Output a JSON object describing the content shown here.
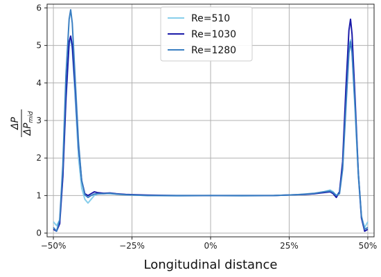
{
  "chart_data": {
    "type": "line",
    "title": "",
    "xlabel": "Longitudinal distance",
    "ylabel": "ΔP / ΔP_mid",
    "ylabel_num": "ΔP",
    "ylabel_den_main": "ΔP",
    "ylabel_den_sub": "mid",
    "xlim": [
      -0.52,
      0.52
    ],
    "ylim": [
      -0.1,
      6.1
    ],
    "xticks": [
      {
        "value": -0.5,
        "label": "−50%"
      },
      {
        "value": -0.25,
        "label": "−25%"
      },
      {
        "value": 0,
        "label": "0%"
      },
      {
        "value": 0.25,
        "label": "25%"
      },
      {
        "value": 0.5,
        "label": "50%"
      }
    ],
    "yticks": [
      {
        "value": 0,
        "label": "0"
      },
      {
        "value": 1,
        "label": "1"
      },
      {
        "value": 2,
        "label": "2"
      },
      {
        "value": 3,
        "label": "3"
      },
      {
        "value": 4,
        "label": "4"
      },
      {
        "value": 5,
        "label": "5"
      },
      {
        "value": 6,
        "label": "6"
      }
    ],
    "grid": true,
    "legend_position": "top-center",
    "series": [
      {
        "name": "Re=510",
        "color": "#87ceeb",
        "points": [
          [
            -0.5,
            0.3
          ],
          [
            -0.49,
            0.2
          ],
          [
            -0.48,
            0.35
          ],
          [
            -0.47,
            1.5
          ],
          [
            -0.46,
            3.5
          ],
          [
            -0.45,
            5.0
          ],
          [
            -0.445,
            5.2
          ],
          [
            -0.44,
            4.9
          ],
          [
            -0.43,
            3.5
          ],
          [
            -0.42,
            2.0
          ],
          [
            -0.41,
            1.2
          ],
          [
            -0.4,
            0.9
          ],
          [
            -0.39,
            0.8
          ],
          [
            -0.38,
            0.9
          ],
          [
            -0.37,
            1.0
          ],
          [
            -0.36,
            1.04
          ],
          [
            -0.34,
            1.06
          ],
          [
            -0.32,
            1.05
          ],
          [
            -0.3,
            1.04
          ],
          [
            -0.27,
            1.02
          ],
          [
            -0.2,
            1.0
          ],
          [
            -0.1,
            0.99
          ],
          [
            0,
            1.0
          ],
          [
            0.1,
            0.99
          ],
          [
            0.2,
            1.0
          ],
          [
            0.27,
            1.02
          ],
          [
            0.3,
            1.03
          ],
          [
            0.33,
            1.05
          ],
          [
            0.36,
            1.1
          ],
          [
            0.38,
            1.15
          ],
          [
            0.39,
            1.1
          ],
          [
            0.4,
            1.0
          ],
          [
            0.41,
            1.1
          ],
          [
            0.42,
            1.8
          ],
          [
            0.43,
            3.5
          ],
          [
            0.44,
            5.0
          ],
          [
            0.445,
            5.15
          ],
          [
            0.45,
            4.8
          ],
          [
            0.46,
            3.2
          ],
          [
            0.47,
            1.5
          ],
          [
            0.48,
            0.4
          ],
          [
            0.49,
            0.15
          ],
          [
            0.5,
            0.3
          ]
        ]
      },
      {
        "name": "Re=1030",
        "color": "#1a1aa8",
        "points": [
          [
            -0.5,
            0.1
          ],
          [
            -0.49,
            0.05
          ],
          [
            -0.48,
            0.25
          ],
          [
            -0.47,
            1.5
          ],
          [
            -0.46,
            3.6
          ],
          [
            -0.45,
            5.1
          ],
          [
            -0.445,
            5.25
          ],
          [
            -0.44,
            5.0
          ],
          [
            -0.43,
            3.8
          ],
          [
            -0.42,
            2.3
          ],
          [
            -0.41,
            1.4
          ],
          [
            -0.4,
            1.05
          ],
          [
            -0.39,
            1.0
          ],
          [
            -0.38,
            1.05
          ],
          [
            -0.37,
            1.1
          ],
          [
            -0.36,
            1.08
          ],
          [
            -0.34,
            1.06
          ],
          [
            -0.32,
            1.07
          ],
          [
            -0.3,
            1.05
          ],
          [
            -0.27,
            1.03
          ],
          [
            -0.2,
            1.01
          ],
          [
            -0.1,
            1.0
          ],
          [
            0,
            1.0
          ],
          [
            0.1,
            1.0
          ],
          [
            0.2,
            1.0
          ],
          [
            0.27,
            1.02
          ],
          [
            0.3,
            1.03
          ],
          [
            0.33,
            1.05
          ],
          [
            0.36,
            1.08
          ],
          [
            0.38,
            1.1
          ],
          [
            0.39,
            1.05
          ],
          [
            0.4,
            0.95
          ],
          [
            0.41,
            1.1
          ],
          [
            0.42,
            1.9
          ],
          [
            0.43,
            3.8
          ],
          [
            0.44,
            5.4
          ],
          [
            0.445,
            5.7
          ],
          [
            0.45,
            5.3
          ],
          [
            0.46,
            3.5
          ],
          [
            0.47,
            1.6
          ],
          [
            0.48,
            0.4
          ],
          [
            0.49,
            0.05
          ],
          [
            0.5,
            0.1
          ]
        ]
      },
      {
        "name": "Re=1280",
        "color": "#3a7fc2",
        "points": [
          [
            -0.5,
            0.15
          ],
          [
            -0.49,
            0.05
          ],
          [
            -0.48,
            0.35
          ],
          [
            -0.47,
            1.8
          ],
          [
            -0.46,
            4.2
          ],
          [
            -0.45,
            5.7
          ],
          [
            -0.445,
            5.95
          ],
          [
            -0.44,
            5.6
          ],
          [
            -0.43,
            4.0
          ],
          [
            -0.42,
            2.4
          ],
          [
            -0.41,
            1.4
          ],
          [
            -0.4,
            1.02
          ],
          [
            -0.39,
            0.95
          ],
          [
            -0.38,
            1.0
          ],
          [
            -0.37,
            1.04
          ],
          [
            -0.36,
            1.05
          ],
          [
            -0.34,
            1.05
          ],
          [
            -0.32,
            1.06
          ],
          [
            -0.3,
            1.04
          ],
          [
            -0.27,
            1.02
          ],
          [
            -0.2,
            1.0
          ],
          [
            -0.1,
            1.0
          ],
          [
            0,
            1.0
          ],
          [
            0.1,
            1.0
          ],
          [
            0.2,
            1.0
          ],
          [
            0.27,
            1.02
          ],
          [
            0.3,
            1.04
          ],
          [
            0.33,
            1.06
          ],
          [
            0.36,
            1.1
          ],
          [
            0.38,
            1.12
          ],
          [
            0.39,
            1.08
          ],
          [
            0.4,
            1.0
          ],
          [
            0.41,
            1.05
          ],
          [
            0.42,
            1.7
          ],
          [
            0.43,
            3.3
          ],
          [
            0.44,
            4.8
          ],
          [
            0.445,
            5.1
          ],
          [
            0.45,
            4.8
          ],
          [
            0.46,
            3.3
          ],
          [
            0.47,
            1.6
          ],
          [
            0.48,
            0.45
          ],
          [
            0.49,
            0.1
          ],
          [
            0.5,
            0.15
          ]
        ]
      }
    ]
  }
}
